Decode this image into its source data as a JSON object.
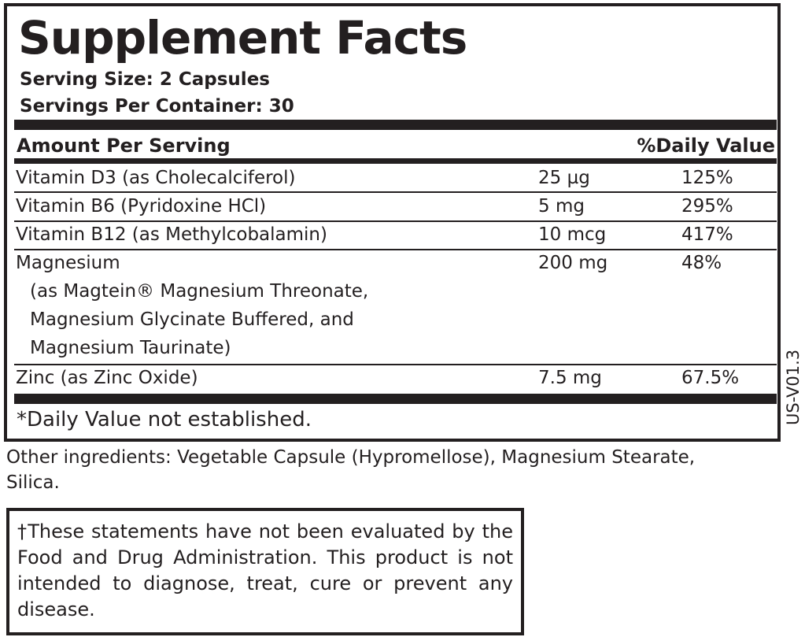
{
  "title": "Supplement Facts",
  "serving_size": "Serving Size: 2 Capsules",
  "servings_per_container": "Servings Per Container: 30",
  "header": {
    "amount": "Amount Per Serving",
    "dv": "%Daily Value"
  },
  "rows": [
    {
      "name": "Vitamin D3 (as Cholecalciferol)",
      "amount": "25 µg",
      "dv": "125%"
    },
    {
      "name": "Vitamin B6 (Pyridoxine HCl)",
      "amount": "5 mg",
      "dv": "295%"
    },
    {
      "name": "Vitamin B12 (as Methylcobalamin)",
      "amount": "10 mcg",
      "dv": "417%"
    },
    {
      "name": "Magnesium",
      "sub": [
        "(as Magtein® Magnesium Threonate,",
        "Magnesium Glycinate Buffered, and",
        "Magnesium Taurinate)"
      ],
      "amount": "200 mg",
      "dv": "48%"
    },
    {
      "name": "Zinc (as Zinc Oxide)",
      "amount": "7.5 mg",
      "dv": "67.5%"
    }
  ],
  "footnote": "*Daily Value not established.",
  "version": "US-V01.3",
  "other_ingredients": "Other ingredients: Vegetable Capsule (Hypromellose), Magnesium Stearate, Silica.",
  "disclaimer": "†These statements have not been evaluated by the Food and Drug Administration. This product is not intended to diagnose, treat, cure or prevent any disease."
}
